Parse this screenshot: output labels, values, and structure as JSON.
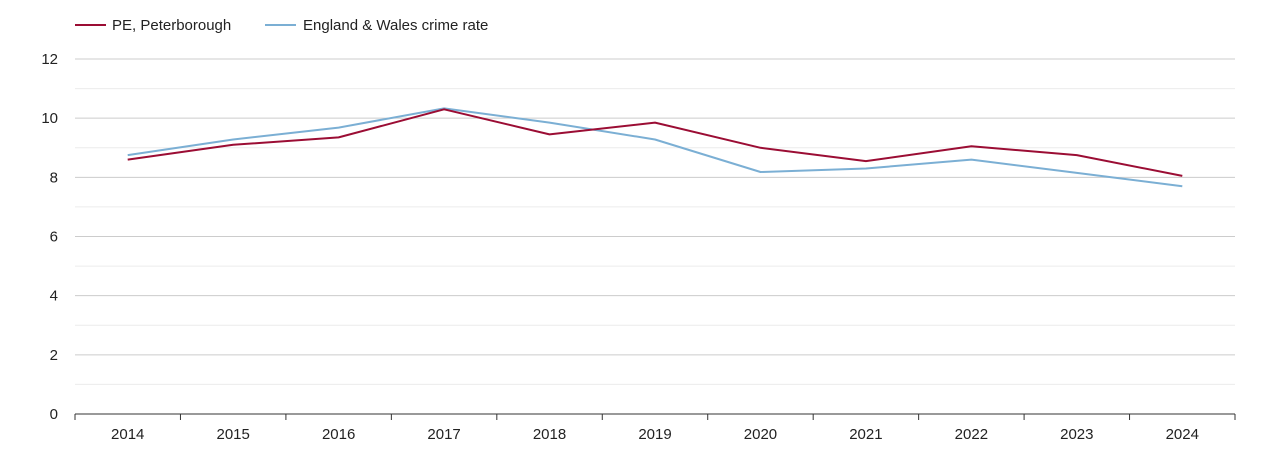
{
  "chart_data": {
    "type": "line",
    "title": "",
    "xlabel": "",
    "ylabel": "",
    "x": [
      "2014",
      "2015",
      "2016",
      "2017",
      "2018",
      "2019",
      "2020",
      "2021",
      "2022",
      "2023",
      "2024"
    ],
    "ylim": [
      0,
      12
    ],
    "yticks": [
      "0",
      "2",
      "4",
      "6",
      "8",
      "10",
      "12"
    ],
    "grid": true,
    "legend_position": "top-left",
    "series": [
      {
        "name": "PE, Peterborough",
        "color": "#9b0d34",
        "values": [
          8.6,
          9.1,
          9.35,
          10.3,
          9.45,
          9.85,
          9.0,
          8.55,
          9.05,
          8.75,
          8.05
        ]
      },
      {
        "name": "England & Wales crime rate",
        "color": "#7bafd4",
        "values": [
          8.75,
          9.28,
          9.68,
          10.33,
          9.85,
          9.28,
          8.18,
          8.3,
          8.6,
          8.15,
          7.7
        ]
      }
    ]
  }
}
